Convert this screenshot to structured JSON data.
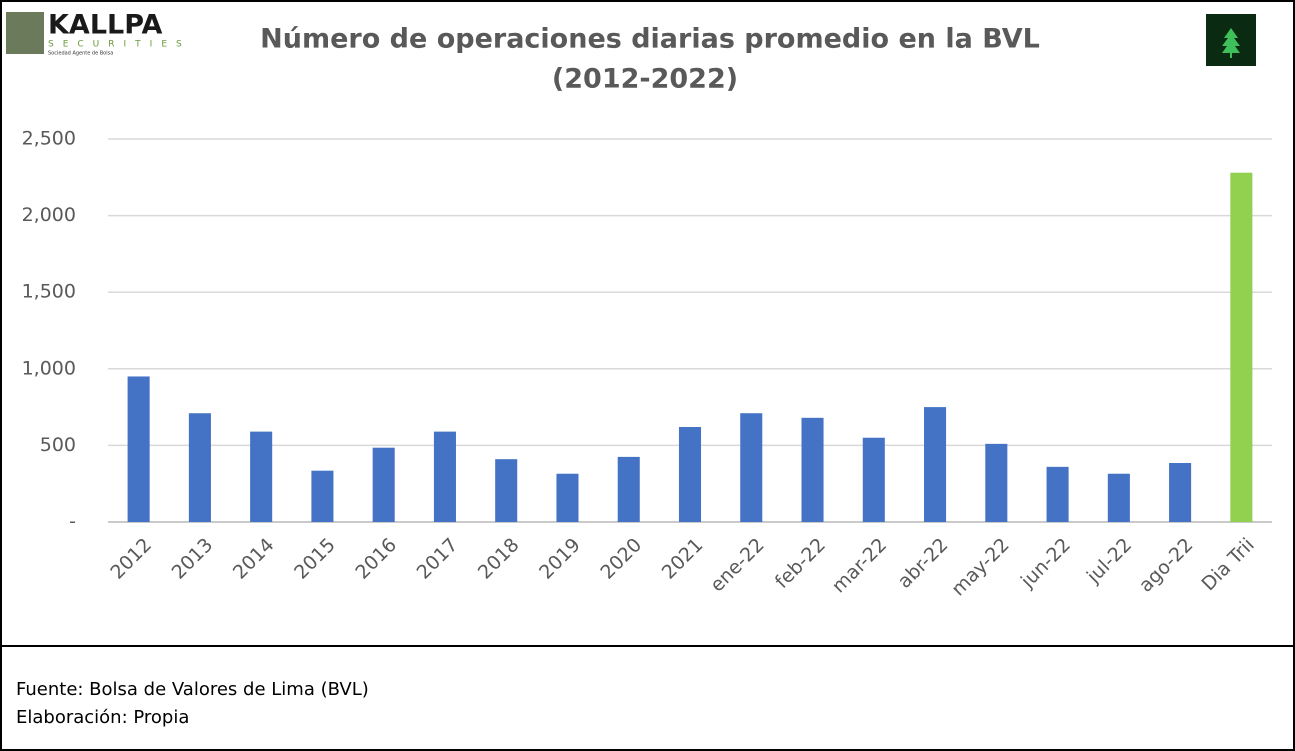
{
  "logo": {
    "name": "KALLPA",
    "sub": "SECURITIES",
    "tagline": "Sociedad Agente de Bolsa"
  },
  "chart_data": {
    "type": "bar",
    "title": "Número de operaciones diarias promedio en la BVL",
    "subtitle": "(2012-2022)",
    "categories": [
      "2012",
      "2013",
      "2014",
      "2015",
      "2016",
      "2017",
      "2018",
      "2019",
      "2020",
      "2021",
      "ene-22",
      "feb-22",
      "mar-22",
      "abr-22",
      "may-22",
      "jun-22",
      "jul-22",
      "ago-22",
      "Dia Trii"
    ],
    "values": [
      950,
      710,
      590,
      335,
      485,
      590,
      410,
      315,
      425,
      620,
      710,
      680,
      550,
      750,
      510,
      360,
      315,
      385,
      2280
    ],
    "colors": [
      "#4472c4",
      "#4472c4",
      "#4472c4",
      "#4472c4",
      "#4472c4",
      "#4472c4",
      "#4472c4",
      "#4472c4",
      "#4472c4",
      "#4472c4",
      "#4472c4",
      "#4472c4",
      "#4472c4",
      "#4472c4",
      "#4472c4",
      "#4472c4",
      "#4472c4",
      "#4472c4",
      "#92d050"
    ],
    "ylim": [
      0,
      2500
    ],
    "yticks": [
      {
        "value": 0,
        "label": "-"
      },
      500,
      {
        "value": 1000,
        "label": "1,000"
      },
      {
        "value": 1500,
        "label": "1,500"
      },
      {
        "value": 2000,
        "label": "2,000"
      },
      {
        "value": 2500,
        "label": "2,500"
      }
    ],
    "grid": true
  },
  "footer": {
    "source": "Fuente: Bolsa de Valores de Lima (BVL)",
    "credit": "Elaboración: Propia"
  }
}
